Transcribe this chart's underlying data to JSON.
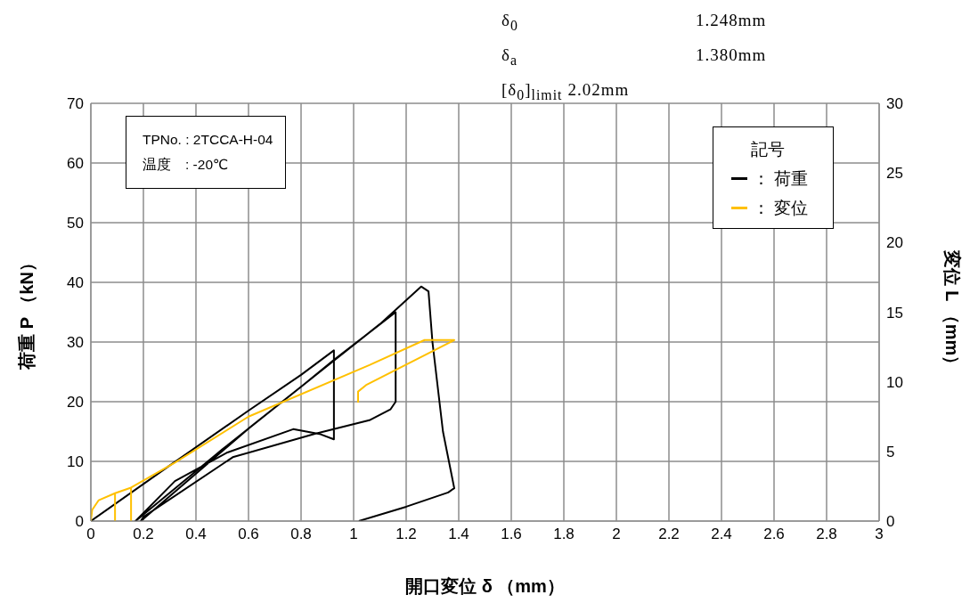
{
  "chart_data": {
    "type": "line",
    "xlabel": "開口変位 δ （mm）",
    "ylabel": "荷重 P （kN）",
    "y2label": "変位 L （mm）",
    "legend_title": "記号",
    "annotations": [
      "δ$_{0}$ 1.248mm",
      "δ$_{a}$ 1.380mm",
      "[δ$_{0}$]$_{limit}$ 2.02mm",
      "TPNo. : 2TCCA-H-04",
      "温度　: -20℃"
    ],
    "xlim": [
      0,
      3
    ],
    "xticks": [
      0,
      0.2,
      0.4,
      0.6,
      0.8,
      1,
      1.2,
      1.4,
      1.6,
      1.8,
      2,
      2.2,
      2.4,
      2.6,
      2.8,
      3
    ],
    "ylim": [
      0,
      70
    ],
    "yticks": [
      0,
      10,
      20,
      30,
      40,
      50,
      60,
      70
    ],
    "y2lim": [
      0,
      30
    ],
    "y2ticks": [
      0,
      5,
      10,
      15,
      20,
      25,
      30
    ],
    "grid": true,
    "legend": "top right",
    "marker": "none",
    "line_style": "solid",
    "series": [
      {
        "name": "： 荷重",
        "color": "#000000",
        "x": [
          0,
          0.3,
          0.6,
          0.8,
          0.925,
          0.925,
          0.87,
          0.77,
          0.52,
          0.32,
          0.17,
          0.5,
          0.8,
          0.925,
          1.16,
          1.16,
          1.14,
          1.06,
          0.85,
          0.54,
          0.2,
          0.19,
          0.6,
          0.9,
          1.1,
          1.257,
          1.285,
          1.3,
          1.34,
          1.383,
          1.36,
          1.2,
          1.02
        ],
        "values": [
          0,
          9.3,
          18.5,
          24.5,
          28.6,
          13.7,
          14.6,
          15.4,
          11.5,
          6.7,
          0,
          12,
          22.5,
          27,
          35,
          20,
          18.7,
          16.9,
          14.6,
          10.7,
          0.7,
          0,
          15.5,
          26,
          33,
          39.3,
          38.5,
          30,
          15,
          5.5,
          4.8,
          2.4,
          0
        ]
      },
      {
        "name": "： 変位",
        "color": "#ffc000",
        "axis": "y2",
        "x": [
          0,
          0.005,
          0.03,
          0.092,
          0.092,
          0.092,
          0.153,
          0.153,
          0.153,
          0.32,
          0.6,
          1.06,
          1.27,
          1.383,
          1.05,
          1.017,
          1.017
        ],
        "values": [
          0,
          0.8,
          1.5,
          2.0,
          0,
          2.0,
          2.4,
          0,
          2.4,
          4.2,
          7.5,
          11.2,
          13.0,
          13.0,
          9.8,
          9.3,
          8.5
        ]
      }
    ]
  }
}
